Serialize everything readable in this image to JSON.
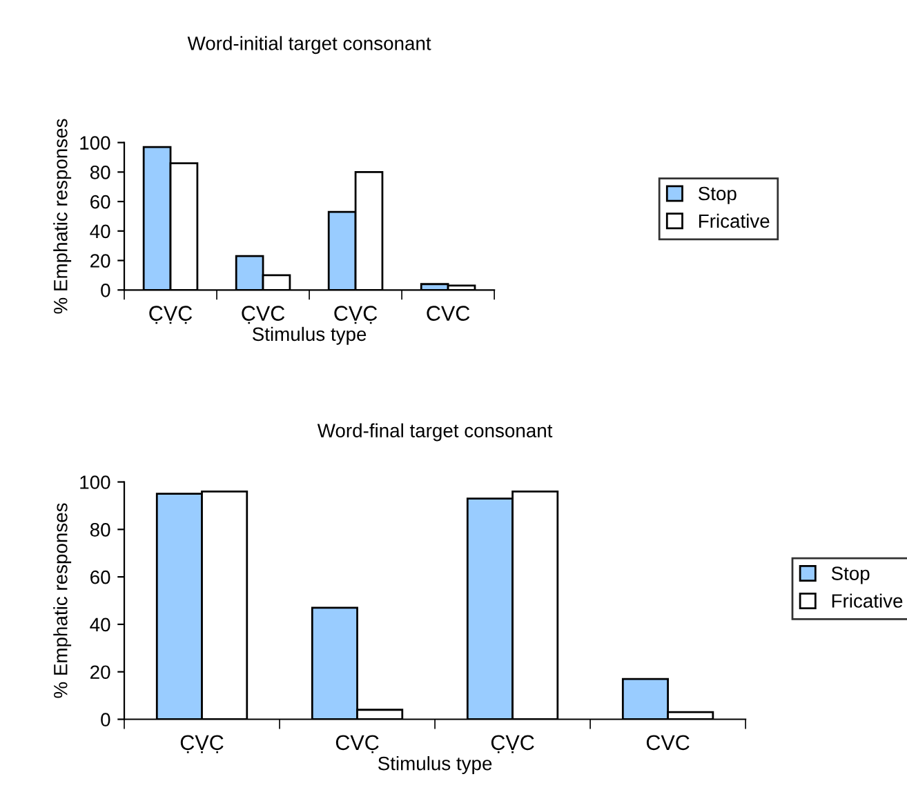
{
  "chart_data": [
    {
      "type": "bar",
      "title": "Word-initial target consonant",
      "xlabel": "Stimulus type",
      "ylabel": "% Emphatic responses",
      "categories": [
        "C̣ṾC̣",
        "C̣VC",
        "CṾC̣",
        "CVC"
      ],
      "series": [
        {
          "name": "Stop",
          "color": "#99ccff",
          "values": [
            97,
            23,
            53,
            4
          ]
        },
        {
          "name": "Fricative",
          "color": "#ffffff",
          "values": [
            86,
            10,
            80,
            3
          ]
        }
      ],
      "ylim": [
        0,
        100
      ],
      "yticks": [
        0,
        20,
        40,
        60,
        80,
        100
      ],
      "grid": false,
      "legend": "right"
    },
    {
      "type": "bar",
      "title": "Word-final target consonant",
      "xlabel": "Stimulus type",
      "ylabel": "% Emphatic responses",
      "categories": [
        "C̣ṾC̣",
        "CVC̣",
        "C̣ṾC",
        "CVC"
      ],
      "series": [
        {
          "name": "Stop",
          "color": "#99ccff",
          "values": [
            95,
            47,
            93,
            17
          ]
        },
        {
          "name": "Fricative",
          "color": "#ffffff",
          "values": [
            96,
            4,
            96,
            3
          ]
        }
      ],
      "ylim": [
        0,
        100
      ],
      "yticks": [
        0,
        20,
        40,
        60,
        80,
        100
      ],
      "grid": false,
      "legend": "right"
    }
  ]
}
